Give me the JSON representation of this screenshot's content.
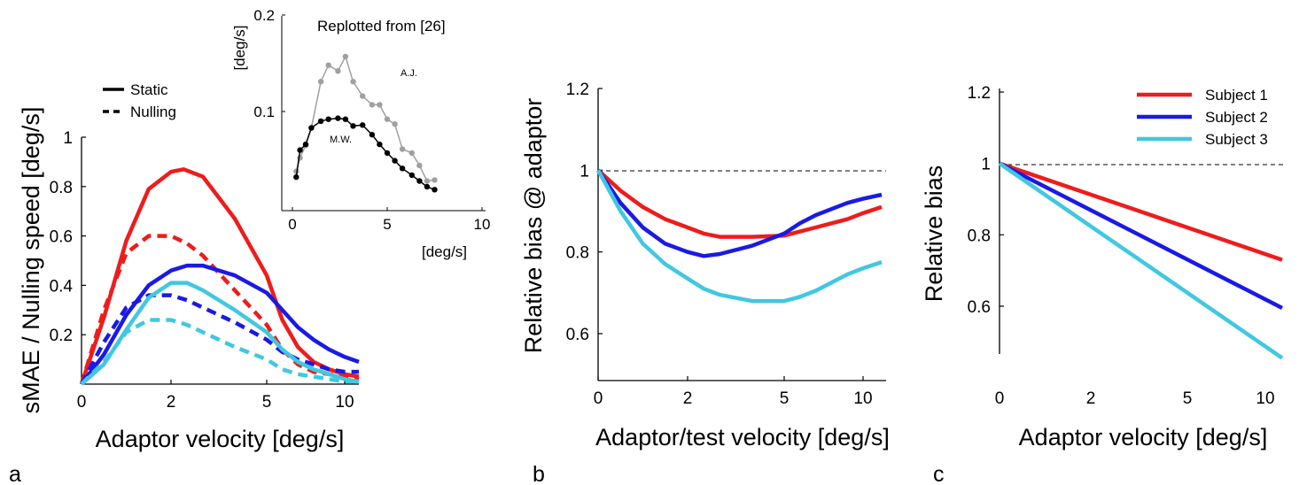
{
  "chart_data": [
    {
      "panel": "a",
      "type": "line",
      "xlabel": "Adaptor velocity [deg/s]",
      "ylabel": "sMAE / Nulling speed [deg/s]",
      "xticks": [
        "0",
        "2",
        "5",
        "10"
      ],
      "yticks": [
        "0.2",
        "0.4",
        "0.6",
        "0.8",
        "1"
      ],
      "xlim": [
        0,
        11
      ],
      "ylim": [
        0,
        1
      ],
      "x_scale": "nonlinear (compressed)",
      "legend": {
        "placement": "top",
        "entries": [
          {
            "label": "Static",
            "style": "solid"
          },
          {
            "label": "Nulling",
            "style": "dashed"
          }
        ]
      },
      "colors": {
        "subject1": "#ee1c1c",
        "subject2": "#1a1ae6",
        "subject3": "#41c8e0"
      },
      "series": [
        {
          "subject": 1,
          "style": "solid",
          "x": [
            0,
            0.5,
            1,
            1.5,
            2,
            2.4,
            3,
            4,
            5,
            6,
            7,
            8,
            9,
            10,
            11
          ],
          "values": [
            0,
            0.27,
            0.58,
            0.79,
            0.86,
            0.87,
            0.84,
            0.67,
            0.44,
            0.26,
            0.15,
            0.09,
            0.06,
            0.04,
            0.03
          ]
        },
        {
          "subject": 1,
          "style": "dashed",
          "x": [
            0,
            0.5,
            1,
            1.5,
            2,
            2.5,
            3,
            4,
            5,
            6,
            7,
            8,
            9,
            10,
            11
          ],
          "values": [
            0,
            0.3,
            0.53,
            0.6,
            0.6,
            0.57,
            0.52,
            0.38,
            0.24,
            0.14,
            0.08,
            0.05,
            0.04,
            0.03,
            0.02
          ]
        },
        {
          "subject": 2,
          "style": "solid",
          "x": [
            0,
            0.5,
            1,
            1.5,
            2,
            2.5,
            3,
            4,
            5,
            6,
            7,
            8,
            9,
            10,
            11
          ],
          "values": [
            0,
            0.12,
            0.28,
            0.4,
            0.46,
            0.48,
            0.48,
            0.44,
            0.37,
            0.3,
            0.23,
            0.18,
            0.14,
            0.11,
            0.09
          ]
        },
        {
          "subject": 2,
          "style": "dashed",
          "x": [
            0,
            0.5,
            1,
            1.5,
            2,
            2.5,
            3,
            4,
            5,
            6,
            7,
            8,
            9,
            10,
            11
          ],
          "values": [
            0,
            0.17,
            0.31,
            0.36,
            0.36,
            0.34,
            0.31,
            0.25,
            0.18,
            0.13,
            0.1,
            0.08,
            0.06,
            0.05,
            0.05
          ]
        },
        {
          "subject": 3,
          "style": "solid",
          "x": [
            0,
            0.5,
            1,
            1.5,
            2,
            2.5,
            3,
            4,
            5,
            6,
            7,
            8,
            9,
            10,
            11
          ],
          "values": [
            0,
            0.08,
            0.22,
            0.35,
            0.41,
            0.41,
            0.38,
            0.3,
            0.21,
            0.14,
            0.09,
            0.06,
            0.04,
            0.02,
            0.01
          ]
        },
        {
          "subject": 3,
          "style": "dashed",
          "x": [
            0,
            0.5,
            1,
            1.5,
            2,
            2.5,
            3,
            4,
            5,
            6,
            7,
            8,
            9,
            10,
            11
          ],
          "values": [
            0,
            0.09,
            0.21,
            0.26,
            0.26,
            0.24,
            0.21,
            0.15,
            0.1,
            0.06,
            0.04,
            0.03,
            0.02,
            0.01,
            0.01
          ]
        }
      ]
    },
    {
      "panel": "a-inset",
      "type": "line",
      "title": "Replotted from [26]",
      "xlabel": "[deg/s]",
      "ylabel": "[deg/s]",
      "xticks": [
        "0",
        "5",
        "10"
      ],
      "yticks": [
        "0.1",
        "0.2"
      ],
      "xlim": [
        0,
        10
      ],
      "ylim": [
        0.02,
        0.2
      ],
      "series": [
        {
          "name": "A.J.",
          "color": "#a0a0a0",
          "x": [
            0.2,
            0.4,
            0.7,
            1.0,
            1.5,
            1.9,
            2.4,
            2.8,
            3.2,
            3.7,
            4.2,
            4.6,
            5.0,
            5.4,
            5.8,
            6.3,
            6.7,
            7.1,
            7.5
          ],
          "values": [
            0.038,
            0.052,
            0.065,
            0.083,
            0.131,
            0.148,
            0.142,
            0.157,
            0.131,
            0.116,
            0.107,
            0.107,
            0.092,
            0.087,
            0.061,
            0.057,
            0.044,
            0.028,
            0.029
          ]
        },
        {
          "name": "M.W.",
          "color": "#000000",
          "x": [
            0.2,
            0.4,
            0.7,
            1.0,
            1.5,
            1.9,
            2.4,
            2.8,
            3.2,
            3.7,
            4.2,
            4.6,
            5.0,
            5.4,
            5.8,
            6.3,
            6.7,
            7.1,
            7.5
          ],
          "values": [
            0.032,
            0.06,
            0.066,
            0.083,
            0.09,
            0.092,
            0.093,
            0.092,
            0.085,
            0.086,
            0.076,
            0.066,
            0.057,
            0.049,
            0.041,
            0.034,
            0.028,
            0.022,
            0.019
          ]
        }
      ]
    },
    {
      "panel": "b",
      "type": "line",
      "xlabel": "Adaptor/test velocity [deg/s]",
      "ylabel": "Relative bias @ adaptor",
      "xticks": [
        "0",
        "2",
        "5",
        "10"
      ],
      "yticks": [
        "0.6",
        "0.8",
        "1",
        "1.2"
      ],
      "xlim": [
        0,
        11
      ],
      "ylim": [
        0.5,
        1.2
      ],
      "reference_line": 1,
      "series": [
        {
          "subject": 1,
          "x": [
            0,
            0.5,
            1,
            1.5,
            2,
            2.5,
            3,
            4,
            5,
            6,
            7,
            8,
            9,
            10,
            11
          ],
          "values": [
            1.0,
            0.95,
            0.91,
            0.88,
            0.86,
            0.845,
            0.837,
            0.837,
            0.84,
            0.85,
            0.86,
            0.87,
            0.88,
            0.895,
            0.91
          ]
        },
        {
          "subject": 2,
          "x": [
            0,
            0.5,
            1,
            1.5,
            2,
            2.5,
            3,
            4,
            5,
            6,
            7,
            8,
            9,
            10,
            11
          ],
          "values": [
            1.0,
            0.92,
            0.86,
            0.82,
            0.8,
            0.79,
            0.795,
            0.815,
            0.845,
            0.87,
            0.89,
            0.905,
            0.92,
            0.93,
            0.94
          ]
        },
        {
          "subject": 3,
          "x": [
            0,
            0.5,
            1,
            1.5,
            2,
            2.5,
            3,
            4,
            5,
            6,
            7,
            8,
            9,
            10,
            11
          ],
          "values": [
            1.0,
            0.9,
            0.82,
            0.77,
            0.735,
            0.71,
            0.695,
            0.68,
            0.68,
            0.69,
            0.705,
            0.725,
            0.745,
            0.76,
            0.775
          ]
        }
      ]
    },
    {
      "panel": "c",
      "type": "line",
      "xlabel": "Adaptor velocity [deg/s]",
      "ylabel": "Relative bias",
      "xticks": [
        "0",
        "2",
        "5",
        "10"
      ],
      "yticks": [
        "0.6",
        "0.8",
        "1",
        "1.2"
      ],
      "xlim": [
        0,
        11
      ],
      "ylim": [
        0.47,
        1.25
      ],
      "reference_line": 1,
      "legend": {
        "placement": "top-right",
        "entries": [
          "Subject 1",
          "Subject 2",
          "Subject 3"
        ]
      },
      "series": [
        {
          "name": "Subject 1",
          "x": [
            0,
            11
          ],
          "values": [
            1.0,
            0.73
          ]
        },
        {
          "name": "Subject 2",
          "x": [
            0,
            11
          ],
          "values": [
            1.0,
            0.595
          ]
        },
        {
          "name": "Subject 3",
          "x": [
            0,
            11
          ],
          "values": [
            1.0,
            0.455
          ]
        }
      ]
    }
  ],
  "panel_labels": [
    "a",
    "b",
    "c"
  ]
}
